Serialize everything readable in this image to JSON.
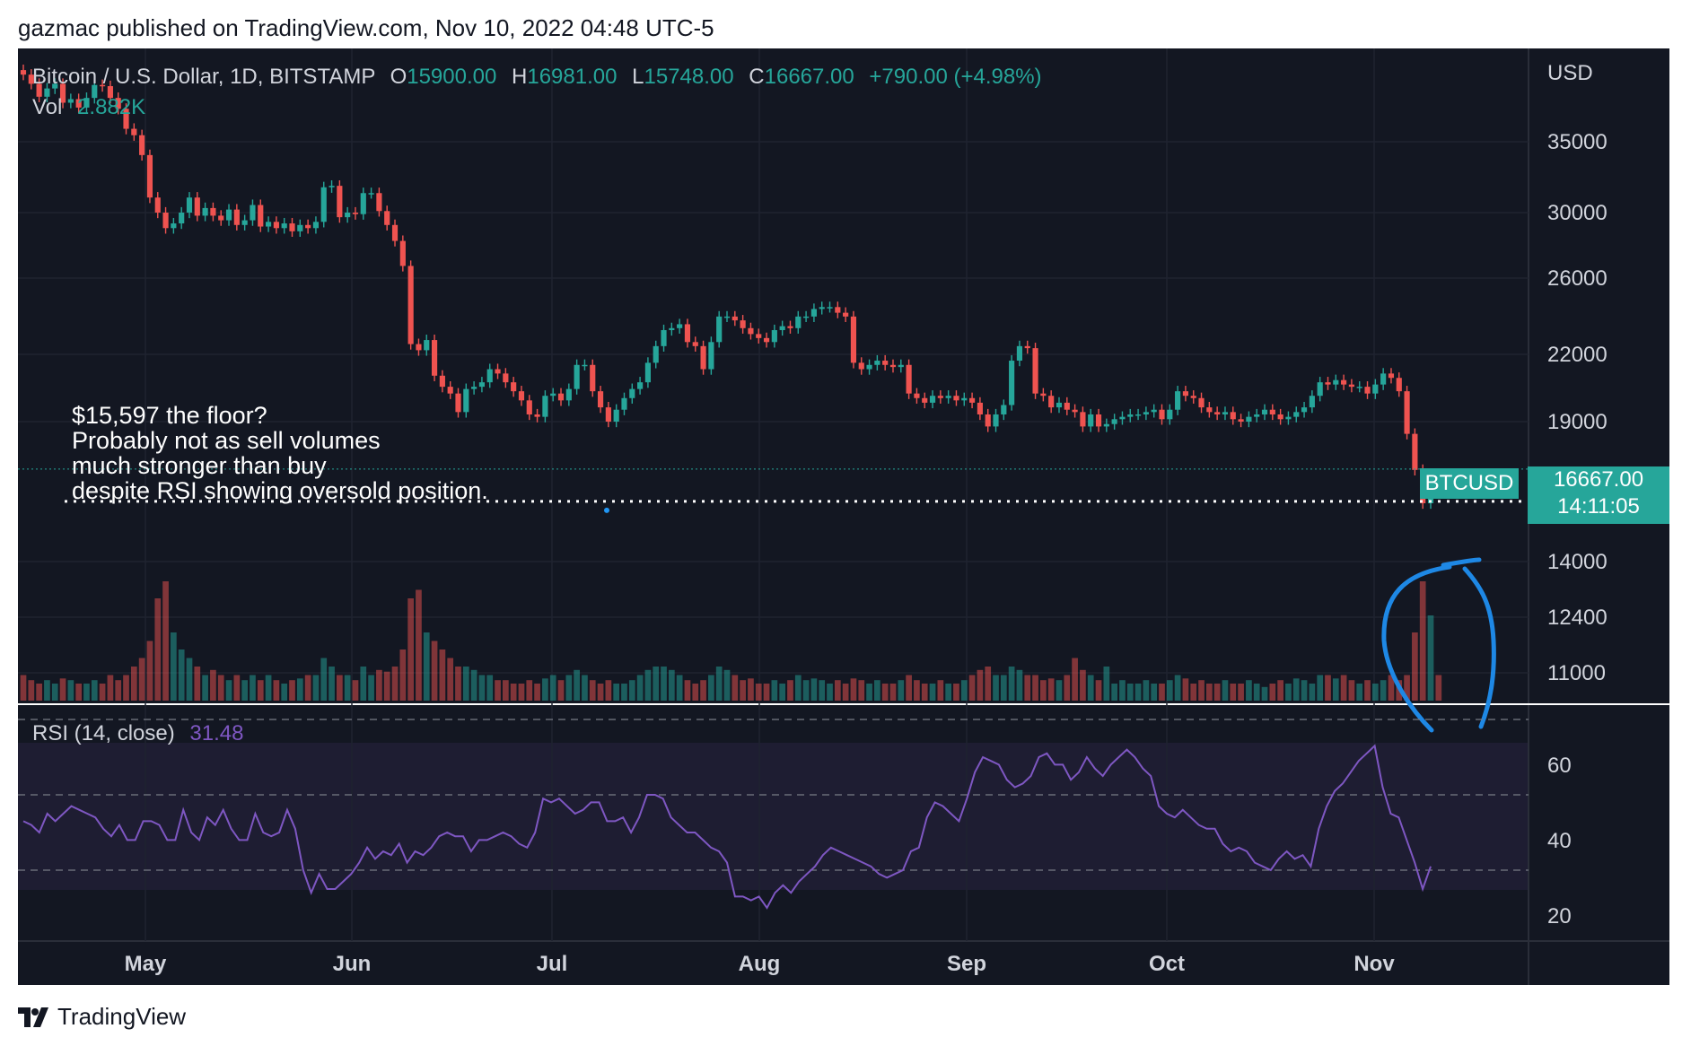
{
  "header": {
    "text": "gazmac published on TradingView.com, Nov 10, 2022 04:48 UTC-5"
  },
  "legend": {
    "title": "Bitcoin / U.S. Dollar, 1D, BITSTAMP",
    "o_label": "O",
    "o_value": "15900.00",
    "h_label": "H",
    "h_value": "16981.00",
    "l_label": "L",
    "l_value": "15748.00",
    "c_label": "C",
    "c_value": "16667.00",
    "change": "+790.00 (+4.98%)"
  },
  "volume_legend": {
    "label": "Vol",
    "value": "2.882K"
  },
  "rsi_legend": {
    "label": "RSI (14, close)",
    "value": "31.48"
  },
  "annotation": {
    "lines": [
      "$15,597 the floor?",
      "Probably not as sell volumes",
      "much stronger than buy",
      "despite RSI showing oversold position."
    ]
  },
  "price_tag": {
    "symbol": "BTCUSD",
    "price": "16667.00",
    "countdown": "14:11:05"
  },
  "currency": "USD",
  "footer": {
    "brand": "TradingView"
  },
  "colors": {
    "background": "#131722",
    "up": "#26a69a",
    "down": "#ef5350",
    "rsi": "#7e57c2",
    "annotation_circle": "#1e88e5"
  },
  "chart_data": {
    "type": "candlestick",
    "symbol": "Bitcoin / U.S. Dollar",
    "interval": "1D",
    "exchange": "BITSTAMP",
    "price_axis_ticks": [
      35000,
      30000,
      26000,
      22000,
      19000,
      14000,
      12400,
      11000
    ],
    "price_axis_scale": "log",
    "time_axis_ticks": [
      "May",
      "Jun",
      "Jul",
      "Aug",
      "Sep",
      "Oct",
      "Nov"
    ],
    "support_line": 15597,
    "last_price": 16667,
    "close_series": [
      40500,
      39700,
      38600,
      39300,
      39700,
      38100,
      38400,
      37700,
      38500,
      39600,
      39500,
      38500,
      37600,
      36000,
      35500,
      34000,
      31000,
      30000,
      29000,
      29300,
      30000,
      31000,
      29800,
      30300,
      29800,
      29500,
      30200,
      29200,
      29500,
      30500,
      29100,
      29400,
      29000,
      29300,
      28800,
      29200,
      29000,
      29400,
      31700,
      31800,
      29700,
      30000,
      29900,
      31300,
      31300,
      30100,
      29200,
      28200,
      26700,
      22500,
      22200,
      22700,
      21000,
      20500,
      20200,
      19400,
      20400,
      20500,
      20700,
      21300,
      21100,
      20700,
      20300,
      19900,
      19300,
      19200,
      20100,
      20200,
      19900,
      20400,
      21500,
      21500,
      20300,
      19600,
      19000,
      19500,
      20000,
      20400,
      20700,
      21600,
      22400,
      23200,
      23300,
      23500,
      22600,
      22400,
      21300,
      22600,
      23900,
      23900,
      23700,
      23300,
      23000,
      22800,
      22600,
      23200,
      23400,
      23300,
      23900,
      23900,
      24300,
      24400,
      24400,
      24100,
      23900,
      21600,
      21300,
      21500,
      21700,
      21500,
      21400,
      21500,
      20200,
      20000,
      19800,
      20100,
      20000,
      20100,
      19900,
      20000,
      19800,
      19300,
      18800,
      19300,
      19700,
      21700,
      22400,
      22300,
      20200,
      20100,
      19600,
      19800,
      19500,
      19400,
      18800,
      19300,
      18800,
      18900,
      19100,
      19200,
      19300,
      19300,
      19400,
      19500,
      19100,
      19500,
      20300,
      20100,
      20000,
      19600,
      19400,
      19300,
      19400,
      19100,
      19000,
      19200,
      19300,
      19500,
      19300,
      19100,
      19200,
      19400,
      19600,
      20100,
      20700,
      20600,
      20800,
      20600,
      20500,
      20500,
      20200,
      20600,
      21100,
      20900,
      20300,
      18500,
      17100,
      15900,
      16667
    ],
    "volume_relative": [
      0.15,
      0.12,
      0.1,
      0.12,
      0.1,
      0.13,
      0.12,
      0.1,
      0.1,
      0.12,
      0.1,
      0.15,
      0.12,
      0.15,
      0.2,
      0.25,
      0.35,
      0.6,
      0.7,
      0.4,
      0.3,
      0.25,
      0.2,
      0.15,
      0.18,
      0.15,
      0.12,
      0.15,
      0.12,
      0.15,
      0.12,
      0.15,
      0.12,
      0.1,
      0.12,
      0.13,
      0.15,
      0.15,
      0.25,
      0.2,
      0.15,
      0.15,
      0.12,
      0.2,
      0.15,
      0.18,
      0.17,
      0.2,
      0.3,
      0.6,
      0.65,
      0.4,
      0.35,
      0.3,
      0.25,
      0.2,
      0.2,
      0.18,
      0.15,
      0.15,
      0.12,
      0.12,
      0.1,
      0.1,
      0.12,
      0.1,
      0.13,
      0.15,
      0.12,
      0.15,
      0.18,
      0.15,
      0.12,
      0.1,
      0.12,
      0.1,
      0.1,
      0.12,
      0.15,
      0.18,
      0.2,
      0.2,
      0.18,
      0.15,
      0.12,
      0.1,
      0.12,
      0.15,
      0.2,
      0.18,
      0.15,
      0.12,
      0.13,
      0.1,
      0.1,
      0.12,
      0.1,
      0.12,
      0.15,
      0.12,
      0.13,
      0.12,
      0.1,
      0.12,
      0.1,
      0.13,
      0.12,
      0.1,
      0.12,
      0.1,
      0.1,
      0.12,
      0.15,
      0.12,
      0.1,
      0.1,
      0.12,
      0.1,
      0.1,
      0.12,
      0.15,
      0.18,
      0.2,
      0.15,
      0.15,
      0.2,
      0.18,
      0.15,
      0.15,
      0.12,
      0.13,
      0.12,
      0.15,
      0.25,
      0.18,
      0.15,
      0.12,
      0.2,
      0.1,
      0.12,
      0.1,
      0.1,
      0.12,
      0.1,
      0.1,
      0.12,
      0.15,
      0.13,
      0.1,
      0.12,
      0.1,
      0.1,
      0.12,
      0.1,
      0.1,
      0.12,
      0.1,
      0.08,
      0.1,
      0.12,
      0.1,
      0.13,
      0.12,
      0.1,
      0.15,
      0.15,
      0.13,
      0.15,
      0.12,
      0.1,
      0.12,
      0.1,
      0.12,
      0.15,
      0.12,
      0.15,
      0.4,
      0.7,
      0.5,
      0.15
    ],
    "rsi": {
      "period": 14,
      "source": "close",
      "axis_ticks": [
        60,
        40,
        20
      ],
      "bands": [
        70,
        50,
        30
      ],
      "last_value": 31.48,
      "values": [
        43,
        42,
        40,
        45,
        43,
        45,
        47,
        46,
        45,
        44,
        41,
        39,
        42,
        38,
        38,
        43,
        43,
        42,
        38,
        38,
        46,
        40,
        38,
        44,
        42,
        46,
        41,
        38,
        38,
        45,
        40,
        39,
        40,
        46,
        41,
        30,
        24,
        29,
        25,
        25,
        27,
        29,
        32,
        36,
        33,
        35,
        34,
        37,
        32,
        35,
        34,
        36,
        39,
        40,
        39,
        39,
        35,
        38,
        38,
        39,
        40,
        39,
        37,
        36,
        40,
        49,
        48,
        49,
        47,
        45,
        46,
        48,
        48,
        43,
        43,
        44,
        40,
        44,
        50,
        50,
        49,
        44,
        42,
        40,
        40,
        38,
        36,
        35,
        32,
        23,
        23,
        22,
        23,
        20,
        24,
        26,
        24,
        27,
        29,
        31,
        34,
        36,
        35,
        34,
        33,
        32,
        31,
        29,
        28,
        29,
        30,
        35,
        36,
        44,
        48,
        47,
        45,
        43,
        49,
        56,
        60,
        59,
        58,
        54,
        52,
        53,
        55,
        60,
        61,
        58,
        58,
        54,
        56,
        60,
        57,
        55,
        58,
        60,
        62,
        60,
        57,
        55,
        47,
        45,
        44,
        46,
        44,
        42,
        41,
        41,
        37,
        35,
        36,
        35,
        32,
        31,
        30,
        33,
        35,
        33,
        34,
        31,
        41,
        47,
        51,
        53,
        56,
        59,
        61,
        63,
        52,
        45,
        44,
        38,
        32,
        25,
        31
      ]
    }
  }
}
